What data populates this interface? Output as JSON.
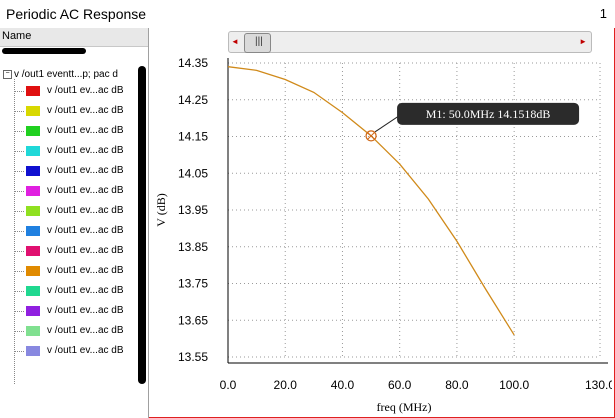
{
  "window": {
    "title": "Periodic AC Response",
    "page_number": "1"
  },
  "tree": {
    "header": "Name",
    "root_label": "v /out1 eventt...p; pac d",
    "expander": "⊟",
    "items": [
      {
        "label": "v /out1 ev...ac dB",
        "color": "#e01010"
      },
      {
        "label": "v /out1 ev...ac dB",
        "color": "#d8d800"
      },
      {
        "label": "v /out1 ev...ac dB",
        "color": "#20d020"
      },
      {
        "label": "v /out1 ev...ac dB",
        "color": "#20d8d8"
      },
      {
        "label": "v /out1 ev...ac dB",
        "color": "#1010d0"
      },
      {
        "label": "v /out1 ev...ac dB",
        "color": "#e020e0"
      },
      {
        "label": "v /out1 ev...ac dB",
        "color": "#90e020"
      },
      {
        "label": "v /out1 ev...ac dB",
        "color": "#2080e0"
      },
      {
        "label": "v /out1 ev...ac dB",
        "color": "#e01070"
      },
      {
        "label": "v /out1 ev...ac dB",
        "color": "#e08a00"
      },
      {
        "label": "v /out1 ev...ac dB",
        "color": "#20d890"
      },
      {
        "label": "v /out1 ev...ac dB",
        "color": "#9020e0"
      },
      {
        "label": "v /out1 ev...ac dB",
        "color": "#80e090"
      },
      {
        "label": "v /out1 ev...ac dB",
        "color": "#8888e0"
      }
    ]
  },
  "scrollbar": {
    "left_arrow": "◄",
    "right_arrow": "►",
    "thumb_grip": "|||"
  },
  "chart_data": {
    "type": "line",
    "xlabel": "freq (MHz)",
    "ylabel": "V (dB)",
    "xlim": [
      0,
      130
    ],
    "ylim": [
      13.55,
      14.35
    ],
    "x_ticks": [
      "0.0",
      "20.0",
      "40.0",
      "60.0",
      "80.0",
      "100.0",
      "130.0"
    ],
    "x_tick_values": [
      0,
      20,
      40,
      60,
      80,
      100,
      130
    ],
    "y_ticks": [
      "14.35",
      "14.25",
      "14.15",
      "14.05",
      "13.95",
      "13.85",
      "13.75",
      "13.65",
      "13.55"
    ],
    "y_tick_values": [
      14.35,
      14.25,
      14.15,
      14.05,
      13.95,
      13.85,
      13.75,
      13.65,
      13.55
    ],
    "grid": true,
    "series": [
      {
        "color": "#d08a1a",
        "x": [
          0,
          10,
          20,
          30,
          40,
          50,
          60,
          70,
          80,
          90,
          100
        ],
        "y": [
          14.34,
          14.33,
          14.305,
          14.27,
          14.215,
          14.1518,
          14.075,
          13.98,
          13.865,
          13.735,
          13.61
        ]
      }
    ],
    "marker": {
      "label": "M1: 50.0MHz 14.1518dB",
      "x": 50.0,
      "y": 14.1518
    }
  }
}
